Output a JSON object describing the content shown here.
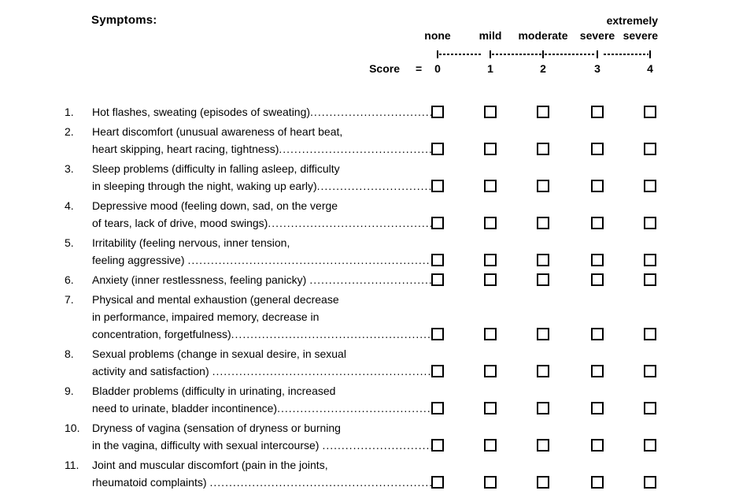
{
  "document": {
    "heading": "Symptoms:",
    "score_row": {
      "label": "Score",
      "equals": "="
    },
    "columns": [
      {
        "label": "none",
        "score": "0"
      },
      {
        "label": "mild",
        "score": "1"
      },
      {
        "label": "moderate",
        "score": "2"
      },
      {
        "label": "severe",
        "score": "3"
      },
      {
        "label": "severe",
        "top_label": "extremely",
        "score": "4"
      }
    ],
    "items": [
      {
        "number": "1.",
        "lines": [
          "Hot flashes, sweating (episodes of sweating)"
        ]
      },
      {
        "number": "2.",
        "lines": [
          "Heart discomfort (unusual awareness of heart beat,",
          "heart skipping, heart racing, tightness)"
        ]
      },
      {
        "number": "3.",
        "lines": [
          "Sleep problems (difficulty in falling asleep, difficulty",
          "in sleeping through the night, waking up early)"
        ]
      },
      {
        "number": "4.",
        "lines": [
          "Depressive mood (feeling down, sad, on the verge",
          "of tears, lack of drive, mood swings)"
        ]
      },
      {
        "number": "5.",
        "lines": [
          "Irritability (feeling nervous, inner tension,",
          "feeling aggressive) "
        ]
      },
      {
        "number": "6.",
        "lines": [
          "Anxiety (inner restlessness, feeling panicky) "
        ]
      },
      {
        "number": "7.",
        "lines": [
          "Physical and mental exhaustion (general decrease",
          "in performance, impaired memory, decrease in",
          "concentration, forgetfulness)"
        ]
      },
      {
        "number": "8.",
        "lines": [
          "Sexual problems (change in sexual desire, in sexual",
          "activity and satisfaction) "
        ]
      },
      {
        "number": "9.",
        "lines": [
          "Bladder problems (difficulty in urinating, increased",
          "need to urinate, bladder incontinence)"
        ]
      },
      {
        "number": "10.",
        "lines": [
          "Dryness of vagina (sensation of dryness or burning",
          "in the vagina, difficulty with sexual intercourse) "
        ]
      },
      {
        "number": "11.",
        "lines": [
          "Joint and muscular discomfort (pain in the joints,",
          "rheumatoid complaints) "
        ]
      }
    ]
  }
}
